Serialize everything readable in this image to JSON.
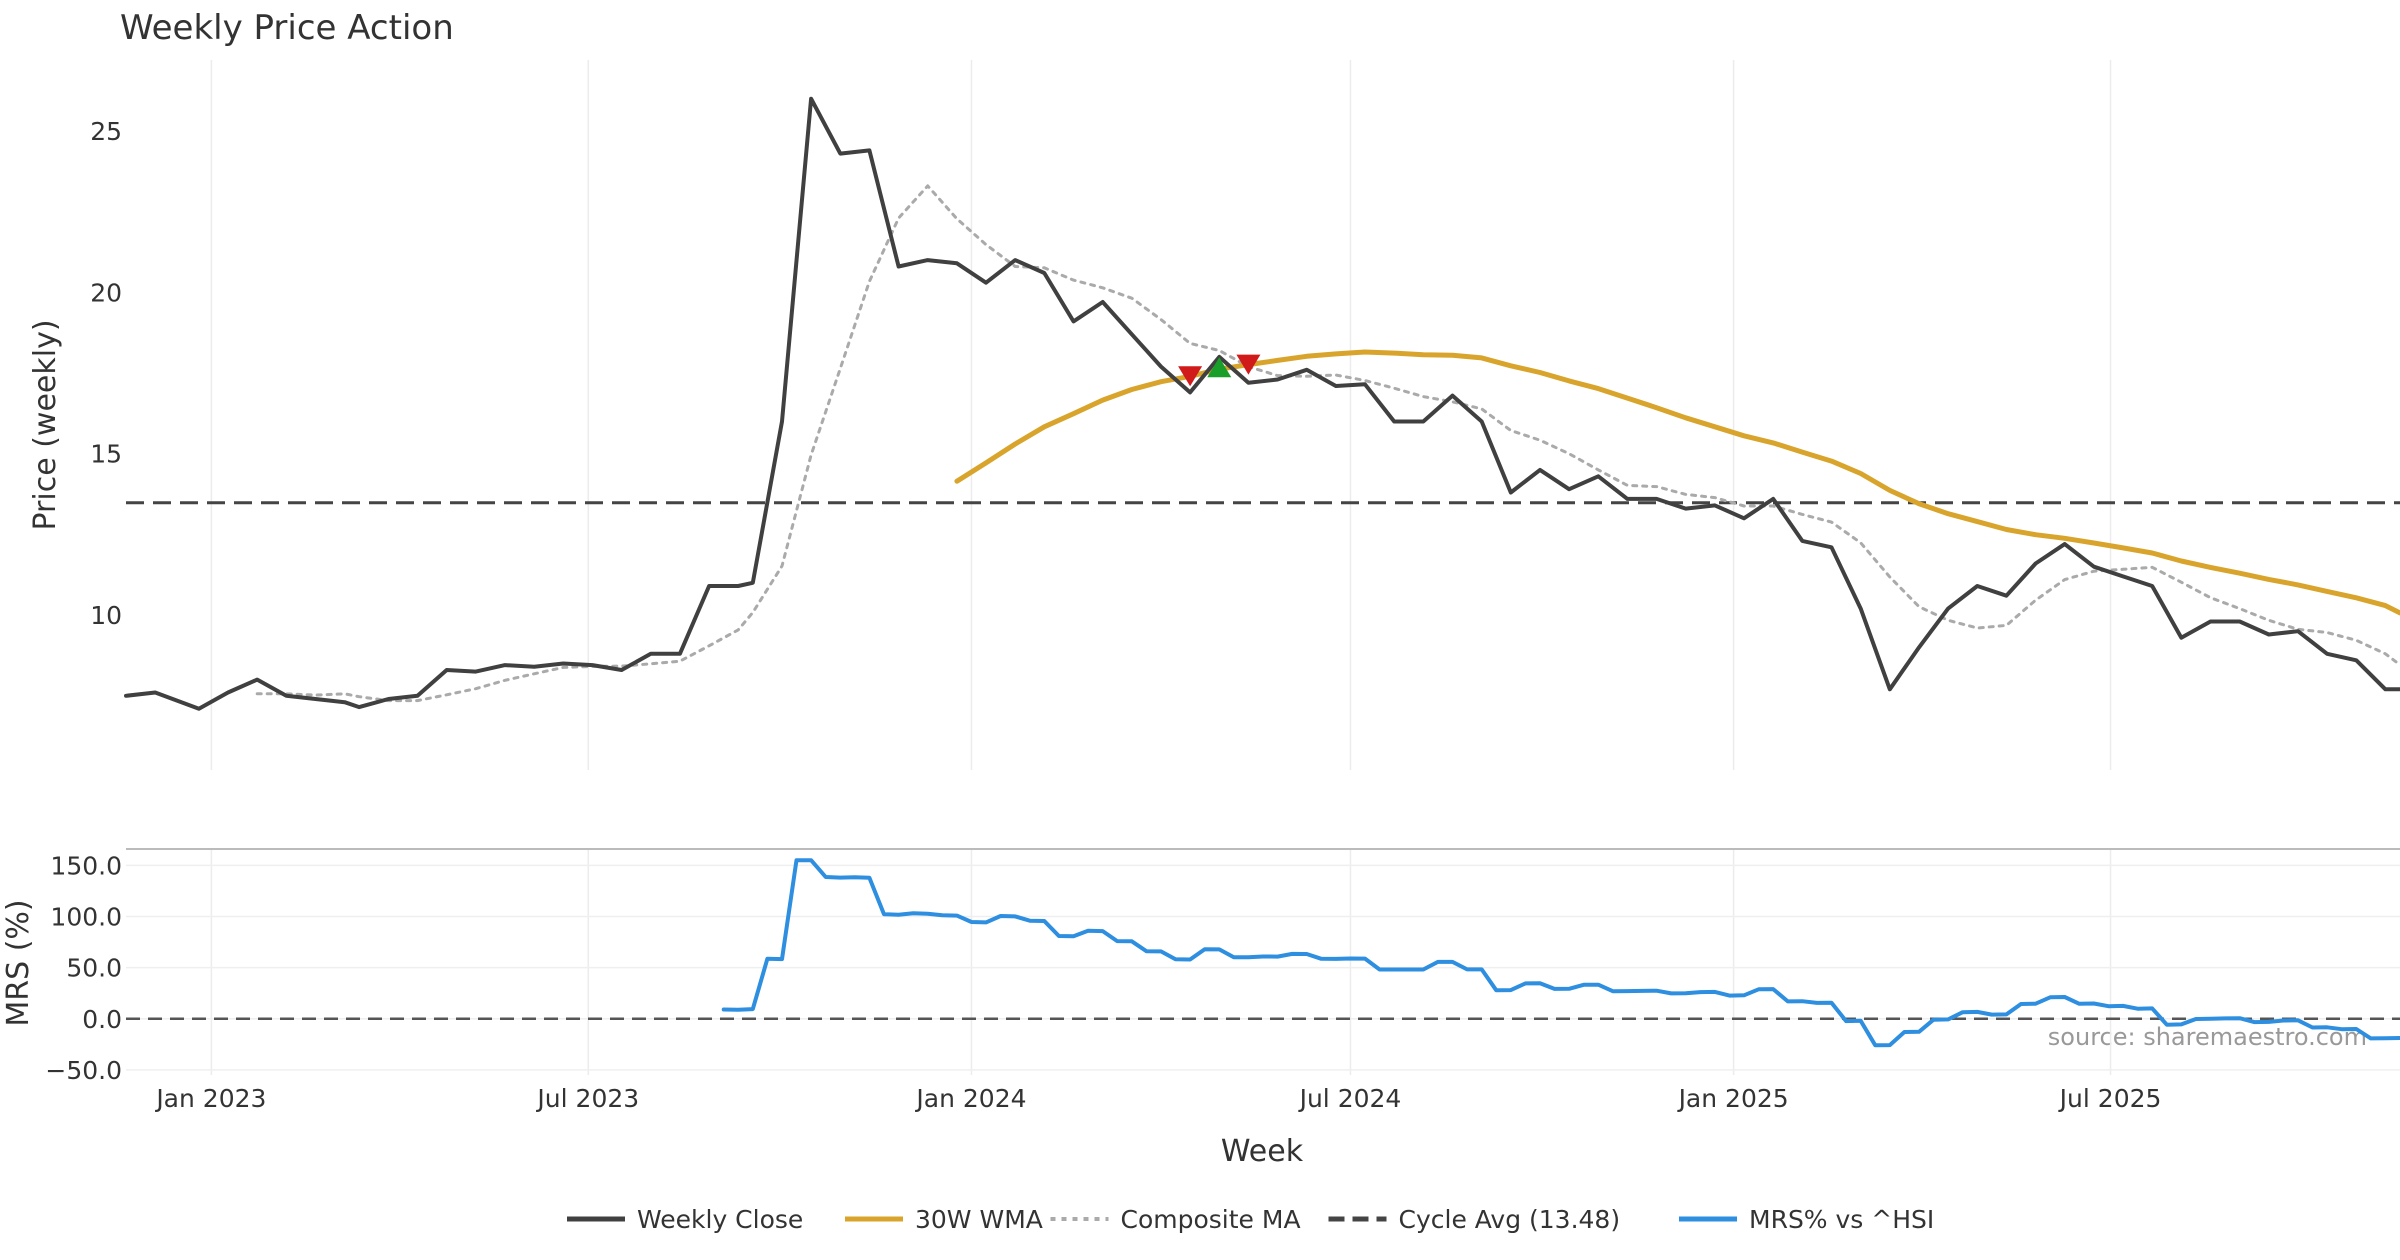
{
  "chart_data": {
    "title": "Weekly Price Action",
    "xlabel": "Week",
    "source": "source: sharemaestro.com",
    "x_range": [
      "2022-11-21",
      "2025-11-17"
    ],
    "x_ticks": [
      {
        "date": "2023-01-01",
        "label": "Jan 2023"
      },
      {
        "date": "2023-07-01",
        "label": "Jul 2023"
      },
      {
        "date": "2024-01-01",
        "label": "Jan 2024"
      },
      {
        "date": "2024-07-01",
        "label": "Jul 2024"
      },
      {
        "date": "2025-01-01",
        "label": "Jan 2025"
      },
      {
        "date": "2025-07-01",
        "label": "Jul 2025"
      }
    ],
    "x_grid": true,
    "legend_position": "bottom-center",
    "price_panel": {
      "type": "line",
      "ylabel": "Price (weekly)",
      "ylim": [
        5.2,
        27.2
      ],
      "y_ticks": [
        10,
        15,
        20,
        25
      ],
      "cycle_avg": 13.48,
      "series": [
        {
          "name": "Weekly Close",
          "color": "#404040",
          "style": "solid",
          "points": [
            [
              "2022-11-21",
              7.5
            ],
            [
              "2022-12-05",
              7.6
            ],
            [
              "2022-12-26",
              7.1
            ],
            [
              "2023-01-09",
              7.6
            ],
            [
              "2023-01-23",
              8.0
            ],
            [
              "2023-02-06",
              7.5
            ],
            [
              "2023-02-20",
              7.4
            ],
            [
              "2023-03-06",
              7.3
            ],
            [
              "2023-03-13",
              7.15
            ],
            [
              "2023-03-27",
              7.4
            ],
            [
              "2023-04-10",
              7.5
            ],
            [
              "2023-04-24",
              8.3
            ],
            [
              "2023-05-08",
              8.25
            ],
            [
              "2023-05-22",
              8.45
            ],
            [
              "2023-06-05",
              8.4
            ],
            [
              "2023-06-19",
              8.5
            ],
            [
              "2023-07-03",
              8.45
            ],
            [
              "2023-07-17",
              8.3
            ],
            [
              "2023-07-31",
              8.8
            ],
            [
              "2023-08-14",
              8.8
            ],
            [
              "2023-08-28",
              10.9
            ],
            [
              "2023-09-11",
              10.9
            ],
            [
              "2023-09-18",
              11.0
            ],
            [
              "2023-10-02",
              16.0
            ],
            [
              "2023-10-16",
              26.0
            ],
            [
              "2023-10-30",
              24.3
            ],
            [
              "2023-11-13",
              24.4
            ],
            [
              "2023-11-27",
              20.8
            ],
            [
              "2023-12-11",
              21.0
            ],
            [
              "2023-12-25",
              20.9
            ],
            [
              "2024-01-08",
              20.3
            ],
            [
              "2024-01-22",
              21.0
            ],
            [
              "2024-02-05",
              20.6
            ],
            [
              "2024-02-19",
              19.1
            ],
            [
              "2024-03-04",
              19.7
            ],
            [
              "2024-03-18",
              18.7
            ],
            [
              "2024-04-01",
              17.7
            ],
            [
              "2024-04-15",
              16.9
            ],
            [
              "2024-04-29",
              18.0
            ],
            [
              "2024-05-13",
              17.2
            ],
            [
              "2024-05-27",
              17.3
            ],
            [
              "2024-06-10",
              17.6
            ],
            [
              "2024-06-24",
              17.1
            ],
            [
              "2024-07-08",
              17.15
            ],
            [
              "2024-07-22",
              16.0
            ],
            [
              "2024-08-05",
              16.0
            ],
            [
              "2024-08-19",
              16.8
            ],
            [
              "2024-09-02",
              16.0
            ],
            [
              "2024-09-16",
              13.8
            ],
            [
              "2024-09-30",
              14.5
            ],
            [
              "2024-10-14",
              13.9
            ],
            [
              "2024-10-28",
              14.3
            ],
            [
              "2024-11-11",
              13.6
            ],
            [
              "2024-11-25",
              13.6
            ],
            [
              "2024-12-09",
              13.3
            ],
            [
              "2024-12-23",
              13.4
            ],
            [
              "2025-01-06",
              13.0
            ],
            [
              "2025-01-20",
              13.6
            ],
            [
              "2025-02-03",
              12.3
            ],
            [
              "2025-02-17",
              12.1
            ],
            [
              "2025-03-03",
              10.2
            ],
            [
              "2025-03-17",
              7.7
            ],
            [
              "2025-03-31",
              9.0
            ],
            [
              "2025-04-14",
              10.2
            ],
            [
              "2025-04-28",
              10.9
            ],
            [
              "2025-05-12",
              10.6
            ],
            [
              "2025-05-26",
              11.6
            ],
            [
              "2025-06-09",
              12.2
            ],
            [
              "2025-06-23",
              11.5
            ],
            [
              "2025-07-07",
              11.2
            ],
            [
              "2025-07-21",
              10.9
            ],
            [
              "2025-08-04",
              9.3
            ],
            [
              "2025-08-18",
              9.8
            ],
            [
              "2025-09-01",
              9.8
            ],
            [
              "2025-09-15",
              9.4
            ],
            [
              "2025-09-29",
              9.5
            ],
            [
              "2025-10-13",
              8.8
            ],
            [
              "2025-10-27",
              8.6
            ],
            [
              "2025-11-10",
              7.7
            ],
            [
              "2025-11-17",
              7.7
            ]
          ]
        },
        {
          "name": "30W WMA",
          "color": "#d9a42b",
          "style": "solid"
        },
        {
          "name": "Composite MA",
          "color": "#aaaaaa",
          "style": "dotted"
        }
      ]
    },
    "mrs_panel": {
      "type": "line",
      "ylabel": "MRS (%)",
      "ylim": [
        -55,
        165
      ],
      "y_ticks": [
        {
          "value": -50,
          "label": "−50.0"
        },
        {
          "value": 0,
          "label": "0.0"
        },
        {
          "value": 50,
          "label": "50.0"
        },
        {
          "value": 100,
          "label": "100.0"
        },
        {
          "value": 150,
          "label": "150.0"
        }
      ],
      "series": [
        {
          "name": "MRS% vs ^HSI",
          "color": "#2e8ee0",
          "style": "solid"
        }
      ]
    },
    "legend": [
      {
        "label": "Weekly Close",
        "color": "#404040",
        "style": "solid"
      },
      {
        "label": "30W WMA",
        "color": "#d9a42b",
        "style": "solid"
      },
      {
        "label": "Composite MA",
        "color": "#aaaaaa",
        "style": "dotted"
      },
      {
        "label": "Cycle Avg (13.48)",
        "color": "#444444",
        "style": "dashed"
      },
      {
        "label": "MRS% vs ^HSI",
        "color": "#2e8ee0",
        "style": "solid"
      }
    ]
  }
}
